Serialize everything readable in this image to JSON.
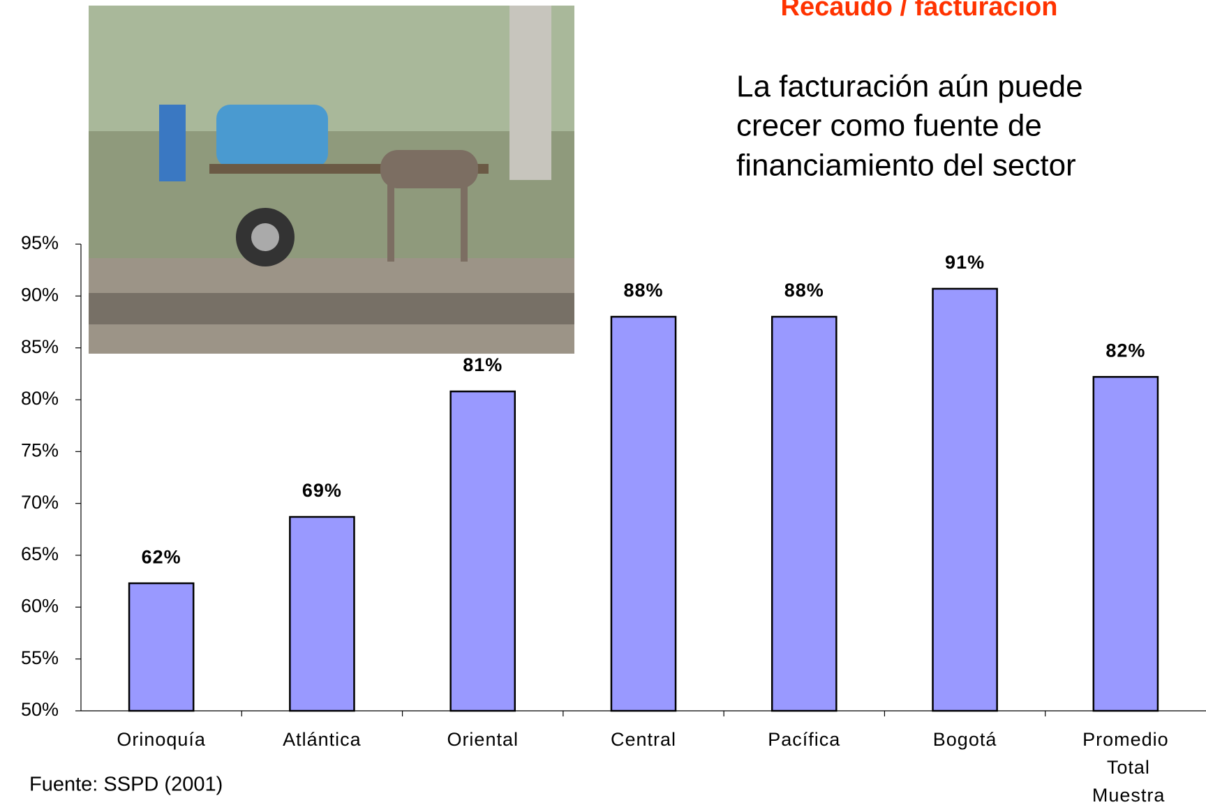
{
  "chart_data": {
    "type": "bar",
    "title": "Recaudo / facturación",
    "subtitle": [
      "La facturación aún puede",
      "crecer como fuente de",
      "financiamiento del sector"
    ],
    "source": "Fuente: SSPD (2001)",
    "categories": [
      "Orinoquía",
      "Atlántica",
      "Oriental",
      "Central",
      "Pacífica",
      "Bogotá",
      "Promedio Total Muestra"
    ],
    "values": [
      62.3,
      68.7,
      80.8,
      88,
      88,
      90.7,
      82.2
    ],
    "value_labels": [
      "62%",
      "69%",
      "81%",
      "88%",
      "88%",
      "91%",
      "82%"
    ],
    "color": "#9999ff",
    "ylim": [
      50,
      95
    ],
    "yticks": [
      {
        "value": 50,
        "label": "50%"
      },
      {
        "value": 55,
        "label": "55%"
      },
      {
        "value": 60,
        "label": "60%"
      },
      {
        "value": 65,
        "label": "65%"
      },
      {
        "value": 70,
        "label": "70%"
      },
      {
        "value": 75,
        "label": "75%"
      },
      {
        "value": 80,
        "label": "80%"
      },
      {
        "value": 85,
        "label": "85%"
      },
      {
        "value": 90,
        "label": "90%"
      },
      {
        "value": 95,
        "label": "95%"
      }
    ],
    "grid": false
  }
}
